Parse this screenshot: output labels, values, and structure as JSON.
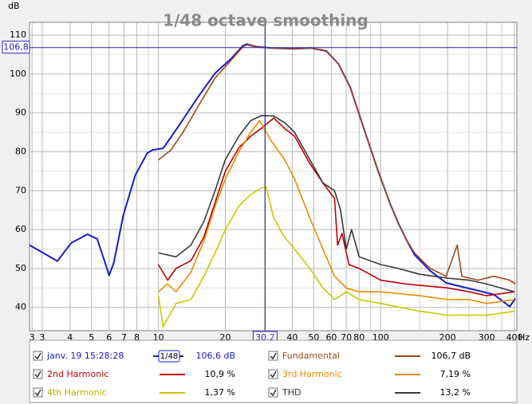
{
  "chart_data": {
    "type": "line",
    "title": "1/48 octave smoothing",
    "y_label": "dB",
    "x_unit": "Hz",
    "log_x": true,
    "grid": true,
    "xlim": [
      2.63,
      410
    ],
    "ylim": [
      34,
      113.3
    ],
    "xticks": [
      {
        "value": 2.7,
        "label": "3"
      },
      3,
      4,
      5,
      6,
      7,
      8,
      10,
      20,
      40,
      50,
      60,
      70,
      80,
      100,
      200,
      300,
      400
    ],
    "xminor": [
      9,
      30,
      90,
      150,
      250,
      350
    ],
    "yticks": [
      40,
      50,
      60,
      70,
      80,
      90,
      100,
      110
    ],
    "yminor": [
      45,
      55,
      65,
      75,
      85,
      95,
      105
    ],
    "cursor": {
      "x": 30.2,
      "x_label": "30,2",
      "y": 106.8,
      "y_label": "106,8"
    },
    "smoothing_label": "1/48",
    "series": [
      {
        "name": "janv. 19 15:28:28",
        "color": "#1a1acc",
        "readout": "106,6 dB",
        "x": [
          2.63,
          3.05,
          3.51,
          4.06,
          4.8,
          5.3,
          5.75,
          6.0,
          6.3,
          6.95,
          7.87,
          8.91,
          9.44,
          10.5,
          11.4,
          12.9,
          15.2,
          18,
          21.2,
          24,
          25,
          27.2,
          32,
          41,
          48.4,
          57,
          64.6,
          73.1,
          86.1,
          97.5,
          110,
          120,
          130,
          142,
          167,
          197,
          232,
          274,
          323,
          381,
          404
        ],
        "values": [
          56,
          53.9,
          51.9,
          56.6,
          58.8,
          57.6,
          51.5,
          48.2,
          51.5,
          63.7,
          74,
          79.7,
          80.5,
          80.9,
          83.8,
          88.3,
          94.4,
          100.2,
          103.9,
          107.3,
          107.7,
          107.1,
          106.7,
          106.5,
          106.7,
          105.9,
          102.6,
          96.5,
          84.2,
          75,
          66.8,
          61.7,
          57.6,
          53.5,
          49.4,
          46.3,
          45.3,
          44.3,
          43.3,
          40.2,
          42.3
        ]
      },
      {
        "name": "Fundamental",
        "color": "#9b4a1e",
        "readout": "106,7 dB",
        "x": [
          10,
          11.4,
          12.9,
          15.2,
          18,
          21.2,
          24,
          25,
          27.2,
          32,
          41,
          48.4,
          57,
          64.6,
          73.1,
          86.1,
          97.5,
          110,
          120,
          130,
          142,
          167,
          197,
          221,
          232,
          274,
          323,
          381,
          404
        ],
        "values": [
          77.9,
          80.5,
          85,
          92,
          99,
          103.5,
          107,
          107.5,
          107,
          106.7,
          106.5,
          106.7,
          106,
          102.6,
          96.5,
          84.2,
          75,
          66.8,
          61.7,
          57.6,
          54,
          50,
          48,
          56,
          48,
          47,
          48,
          47,
          46
        ]
      },
      {
        "name": "2nd Harmonic",
        "color": "#c00000",
        "readout": "10,9 %",
        "x": [
          10,
          11,
          12,
          14,
          16,
          18,
          20,
          23,
          26,
          29,
          33,
          37,
          41,
          48,
          55,
          62,
          64,
          67,
          72,
          80,
          100,
          130,
          200,
          250,
          300,
          400
        ],
        "values": [
          51,
          47,
          50,
          52,
          58,
          67,
          75,
          81,
          84,
          86,
          88.7,
          86,
          84,
          77,
          72,
          68,
          56,
          59,
          51,
          50,
          47,
          46,
          45,
          44,
          43,
          44
        ]
      },
      {
        "name": "3rd Harmonic",
        "color": "#e88a00",
        "readout": "7,19 %",
        "x": [
          10,
          11,
          12,
          14,
          16,
          18,
          20,
          23,
          26,
          28.5,
          32,
          37,
          41,
          48,
          55,
          62,
          70,
          80,
          100,
          150,
          200,
          250,
          300,
          400
        ],
        "values": [
          44,
          46,
          44,
          49,
          57,
          66,
          73,
          80,
          85,
          88,
          83,
          78,
          73,
          63,
          55,
          48,
          45,
          44,
          44,
          43,
          42,
          42,
          41,
          42
        ]
      },
      {
        "name": "4th Harmonic",
        "color": "#c8c800",
        "readout": "1,37 %",
        "x": [
          10,
          10.5,
          12,
          14,
          16,
          18,
          20,
          23,
          26,
          29,
          30.5,
          33,
          37,
          41,
          48,
          55,
          62,
          70,
          80,
          100,
          150,
          200,
          300,
          400
        ],
        "values": [
          43,
          35,
          41,
          42,
          48,
          54,
          60,
          66,
          69,
          70.7,
          71,
          63,
          58,
          55,
          50,
          45,
          42,
          44,
          42,
          41,
          39,
          38,
          38,
          39
        ]
      },
      {
        "name": "THD",
        "color": "#3a3a3a",
        "readout": "13,2 %",
        "x": [
          10,
          12,
          14,
          16,
          18,
          20,
          23,
          26,
          29,
          33,
          37,
          41,
          48,
          55,
          62,
          66,
          70,
          74,
          80,
          100,
          120,
          150,
          200,
          250,
          300,
          400
        ],
        "values": [
          54,
          53,
          56,
          62,
          70,
          78,
          84,
          88,
          89.3,
          89.2,
          87.5,
          85,
          78,
          72,
          70,
          65,
          55,
          60,
          53,
          51,
          50,
          48.5,
          47.5,
          47,
          46,
          44
        ]
      }
    ]
  }
}
